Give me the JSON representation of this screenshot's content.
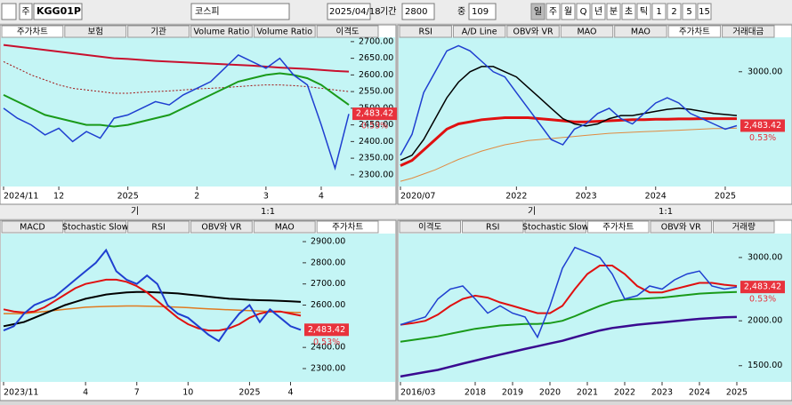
{
  "toolbar": {
    "unit": "주",
    "code": "KGG01P",
    "name": "코스피",
    "date": "2025/04/18",
    "period_label": "기간",
    "period": "2800",
    "mid_label": "중",
    "mid": "109",
    "periods": [
      "일",
      "주",
      "월",
      "Q",
      "년",
      "분",
      "초",
      "틱",
      "1",
      "2",
      "5",
      "15"
    ]
  },
  "pane_toolbar": [
    "기",
    "1:1"
  ],
  "panes": [
    {
      "tabs": [
        "주가차트",
        "보험",
        "기관",
        "Volume Ratio",
        "Volume Ratio",
        "이격도"
      ],
      "active": 0,
      "chart": {
        "type": "line",
        "ylim": [
          2265,
          2713
        ],
        "yticks": [
          {
            "value": 2300,
            "label": "2300.00"
          },
          {
            "value": 2350,
            "label": "2350.00"
          },
          {
            "value": 2400,
            "label": "2400.00"
          },
          {
            "value": 2450,
            "label": "2450.00"
          },
          {
            "value": 2500,
            "label": "2500.00"
          },
          {
            "value": 2550,
            "label": "2550.00"
          },
          {
            "value": 2600,
            "label": "2600.00"
          },
          {
            "value": 2650,
            "label": "2650.00"
          },
          {
            "value": 2700,
            "label": "2700.00"
          }
        ],
        "xticks": [
          {
            "value": 0,
            "label": "2024/11"
          },
          {
            "value": 4,
            "label": "12"
          },
          {
            "value": 9,
            "label": "2025"
          },
          {
            "value": 14,
            "label": "2"
          },
          {
            "value": 19,
            "label": "3"
          },
          {
            "value": 23,
            "label": "4"
          }
        ],
        "last": {
          "value": 2483.42,
          "label": "2,483.42"
        },
        "change": "0.53%",
        "series": [
          {
            "color": "#c8102e",
            "width": 2,
            "dash": false,
            "values": [
              2690,
              2685,
              2680,
              2675,
              2670,
              2665,
              2660,
              2655,
              2650,
              2648,
              2645,
              2642,
              2640,
              2638,
              2636,
              2634,
              2632,
              2630,
              2628,
              2625,
              2622,
              2620,
              2618,
              2615,
              2612,
              2610
            ]
          },
          {
            "color": "#a01010",
            "width": 1,
            "dash": true,
            "values": [
              2640,
              2620,
              2600,
              2585,
              2570,
              2560,
              2555,
              2550,
              2545,
              2545,
              2548,
              2550,
              2552,
              2555,
              2558,
              2560,
              2562,
              2565,
              2568,
              2570,
              2570,
              2568,
              2565,
              2560,
              2555,
              2550
            ]
          },
          {
            "color": "#1a9a1a",
            "width": 2,
            "dash": false,
            "values": [
              2540,
              2520,
              2500,
              2480,
              2470,
              2460,
              2450,
              2450,
              2445,
              2450,
              2460,
              2470,
              2480,
              2500,
              2520,
              2540,
              2560,
              2580,
              2590,
              2600,
              2605,
              2600,
              2590,
              2570,
              2540,
              2510
            ]
          },
          {
            "color": "#1f3fd0",
            "width": 1.5,
            "dash": false,
            "values": [
              2500,
              2470,
              2450,
              2420,
              2440,
              2400,
              2430,
              2410,
              2470,
              2480,
              2500,
              2520,
              2510,
              2540,
              2560,
              2580,
              2620,
              2660,
              2640,
              2620,
              2650,
              2600,
              2570,
              2450,
              2320,
              2483
            ]
          }
        ]
      }
    },
    {
      "tabs": [
        "RSI",
        "A/D Line",
        "OBV와 VR",
        "MAO",
        "MAO",
        "주가차트",
        "거래대금"
      ],
      "active": 5,
      "chart": {
        "type": "line",
        "ylim": [
          1900,
          3330
        ],
        "yticks": [
          {
            "value": 3000,
            "label": "3000.00"
          }
        ],
        "xticks": [
          {
            "value": 0,
            "label": "2020/07"
          },
          {
            "value": 10,
            "label": "2022"
          },
          {
            "value": 16,
            "label": "2023"
          },
          {
            "value": 22,
            "label": "2024"
          },
          {
            "value": 28,
            "label": "2025"
          }
        ],
        "last": {
          "value": 2483.42,
          "label": "2,483.42"
        },
        "change": "0.53%",
        "series": [
          {
            "color": "#e08a40",
            "width": 1,
            "dash": false,
            "values": [
              1950,
              1980,
              2020,
              2060,
              2110,
              2160,
              2200,
              2240,
              2270,
              2300,
              2320,
              2340,
              2350,
              2360,
              2370,
              2380,
              2390,
              2400,
              2410,
              2415,
              2420,
              2425,
              2430,
              2435,
              2440,
              2445,
              2450,
              2455,
              2455,
              2460
            ]
          },
          {
            "color": "#e01010",
            "width": 3,
            "dash": false,
            "values": [
              2100,
              2150,
              2250,
              2350,
              2450,
              2500,
              2520,
              2540,
              2550,
              2560,
              2560,
              2560,
              2550,
              2540,
              2530,
              2520,
              2520,
              2525,
              2530,
              2535,
              2540,
              2540,
              2545,
              2545,
              2548,
              2548,
              2550,
              2550,
              2550,
              2550
            ]
          },
          {
            "color": "#000000",
            "width": 1.5,
            "dash": false,
            "values": [
              2150,
              2200,
              2350,
              2550,
              2750,
              2900,
              3000,
              3050,
              3050,
              3000,
              2950,
              2850,
              2750,
              2650,
              2550,
              2500,
              2480,
              2500,
              2550,
              2580,
              2580,
              2600,
              2620,
              2640,
              2650,
              2640,
              2620,
              2600,
              2590,
              2580
            ]
          },
          {
            "color": "#1f3fd0",
            "width": 1.5,
            "dash": false,
            "values": [
              2200,
              2400,
              2800,
              3000,
              3200,
              3250,
              3200,
              3100,
              3000,
              2950,
              2800,
              2650,
              2500,
              2350,
              2300,
              2450,
              2500,
              2600,
              2650,
              2550,
              2500,
              2600,
              2700,
              2750,
              2700,
              2600,
              2550,
              2500,
              2450,
              2483
            ]
          }
        ]
      }
    },
    {
      "tabs": [
        "MACD",
        "Stochastic Slow",
        "RSI",
        "OBV와 VR",
        "MAO",
        "주가차트"
      ],
      "active": 5,
      "chart": {
        "type": "line",
        "ylim": [
          2237,
          2938
        ],
        "yticks": [
          {
            "value": 2300,
            "label": "2300.00"
          },
          {
            "value": 2400,
            "label": "2400.00"
          },
          {
            "value": 2600,
            "label": "2600.00"
          },
          {
            "value": 2700,
            "label": "2700.00"
          },
          {
            "value": 2800,
            "label": "2800.00"
          },
          {
            "value": 2900,
            "label": "2900.00"
          }
        ],
        "xticks": [
          {
            "value": 0,
            "label": "2023/11"
          },
          {
            "value": 8,
            "label": "4"
          },
          {
            "value": 13,
            "label": "7"
          },
          {
            "value": 18,
            "label": "10"
          },
          {
            "value": 24,
            "label": "2025"
          },
          {
            "value": 28,
            "label": "4"
          }
        ],
        "last": {
          "value": 2483.42,
          "label": "2,483.42"
        },
        "change": "0.53%",
        "series": [
          {
            "color": "#e07a20",
            "width": 1.5,
            "dash": false,
            "values": [
              2560,
              2560,
              2560,
              2565,
              2570,
              2575,
              2580,
              2585,
              2590,
              2592,
              2594,
              2595,
              2596,
              2596,
              2595,
              2594,
              2592,
              2590,
              2588,
              2585,
              2582,
              2580,
              2578,
              2576,
              2574,
              2572,
              2570,
              2568,
              2566,
              2565
            ]
          },
          {
            "color": "#000000",
            "width": 2,
            "dash": false,
            "values": [
              2500,
              2510,
              2520,
              2540,
              2560,
              2580,
              2600,
              2615,
              2630,
              2640,
              2650,
              2655,
              2660,
              2662,
              2662,
              2660,
              2658,
              2655,
              2650,
              2645,
              2640,
              2635,
              2630,
              2628,
              2625,
              2623,
              2622,
              2620,
              2618,
              2615
            ]
          },
          {
            "color": "#e01010",
            "width": 2,
            "dash": false,
            "values": [
              2580,
              2570,
              2565,
              2570,
              2590,
              2620,
              2650,
              2680,
              2700,
              2710,
              2720,
              2720,
              2710,
              2690,
              2660,
              2620,
              2580,
              2540,
              2510,
              2490,
              2480,
              2480,
              2490,
              2510,
              2540,
              2560,
              2570,
              2570,
              2560,
              2550
            ]
          },
          {
            "color": "#1f3fd0",
            "width": 2,
            "dash": false,
            "values": [
              2480,
              2500,
              2560,
              2600,
              2620,
              2640,
              2680,
              2720,
              2760,
              2800,
              2860,
              2760,
              2720,
              2700,
              2740,
              2700,
              2600,
              2560,
              2540,
              2500,
              2460,
              2430,
              2500,
              2560,
              2600,
              2520,
              2580,
              2540,
              2500,
              2483
            ]
          }
        ]
      }
    },
    {
      "tabs": [
        "이격도",
        "RSI",
        "Stochastic Slow",
        "주가차트",
        "OBV와 VR",
        "거래량"
      ],
      "active": 3,
      "chart": {
        "type": "line",
        "log": true,
        "ylim": [
          1352,
          3497
        ],
        "yticks": [
          {
            "value": 1500,
            "label": "1500.00"
          },
          {
            "value": 2000,
            "label": "2000.00"
          },
          {
            "value": 3000,
            "label": "3000.00"
          }
        ],
        "xticks": [
          {
            "value": 0,
            "label": "2016/03"
          },
          {
            "value": 6,
            "label": "2018"
          },
          {
            "value": 9,
            "label": "2019"
          },
          {
            "value": 12,
            "label": "2020"
          },
          {
            "value": 15,
            "label": "2021"
          },
          {
            "value": 18,
            "label": "2022"
          },
          {
            "value": 21,
            "label": "2023"
          },
          {
            "value": 24,
            "label": "2024"
          },
          {
            "value": 27,
            "label": "2025"
          }
        ],
        "last": {
          "value": 2483.42,
          "label": "2,483.42"
        },
        "change": "0.53%",
        "series": [
          {
            "color": "#3a0a90",
            "width": 2.5,
            "dash": false,
            "values": [
              1400,
              1420,
              1440,
              1460,
              1490,
              1520,
              1550,
              1580,
              1610,
              1640,
              1670,
              1700,
              1730,
              1760,
              1800,
              1840,
              1880,
              1910,
              1930,
              1950,
              1965,
              1980,
              1995,
              2010,
              2025,
              2035,
              2045,
              2050
            ]
          },
          {
            "color": "#1a9a1a",
            "width": 2,
            "dash": false,
            "values": [
              1750,
              1770,
              1790,
              1810,
              1840,
              1870,
              1900,
              1920,
              1940,
              1950,
              1960,
              1960,
              1970,
              2000,
              2060,
              2130,
              2200,
              2260,
              2290,
              2300,
              2310,
              2320,
              2340,
              2360,
              2380,
              2390,
              2400,
              2405
            ]
          },
          {
            "color": "#e01010",
            "width": 2,
            "dash": false,
            "values": [
              1950,
              1970,
              2000,
              2080,
              2200,
              2300,
              2350,
              2320,
              2250,
              2200,
              2150,
              2100,
              2100,
              2200,
              2450,
              2700,
              2850,
              2850,
              2700,
              2500,
              2400,
              2400,
              2450,
              2500,
              2550,
              2550,
              2520,
              2500
            ]
          },
          {
            "color": "#1f3fd0",
            "width": 1.5,
            "dash": false,
            "values": [
              1950,
              2000,
              2050,
              2300,
              2450,
              2500,
              2300,
              2100,
              2200,
              2100,
              2050,
              1800,
              2200,
              2800,
              3200,
              3100,
              3000,
              2700,
              2300,
              2350,
              2500,
              2450,
              2600,
              2700,
              2750,
              2500,
              2450,
              2483
            ]
          }
        ]
      }
    }
  ]
}
